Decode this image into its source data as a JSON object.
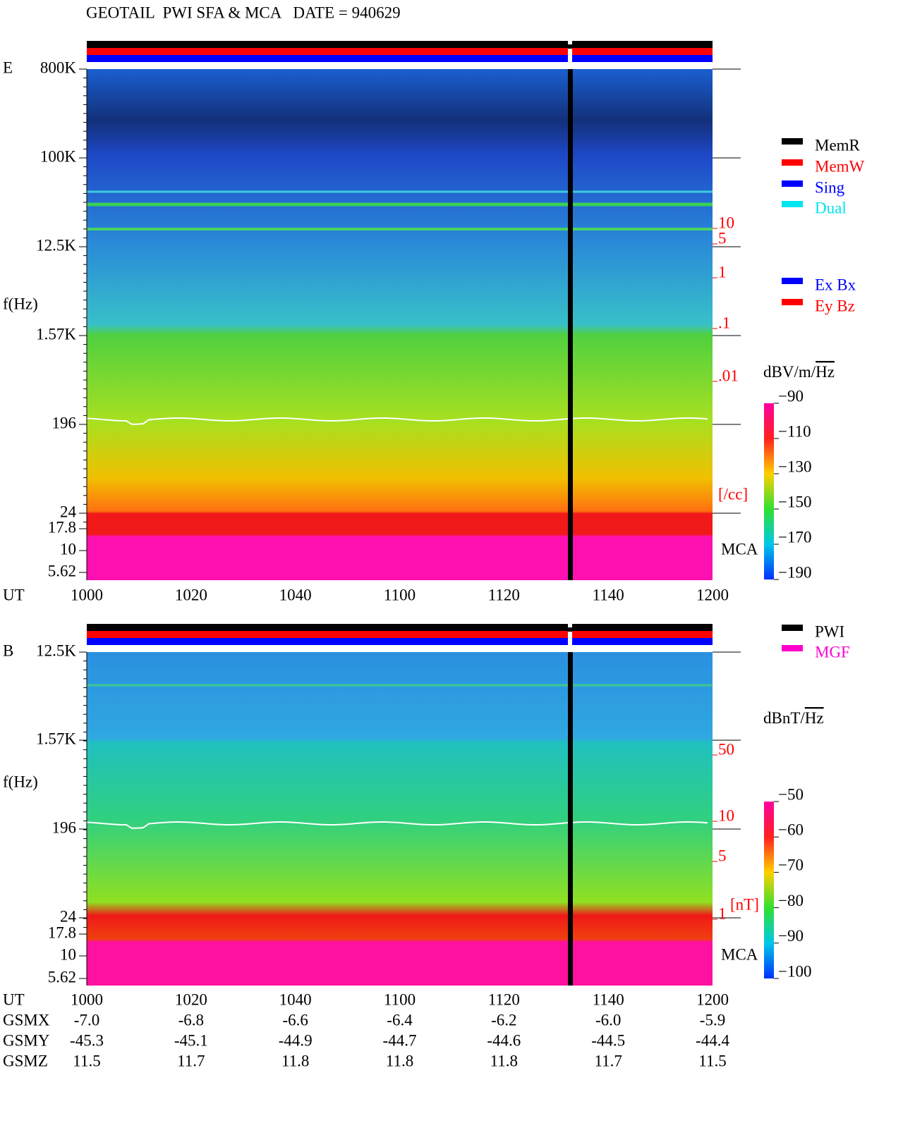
{
  "header": {
    "title": "GEOTAIL  PWI SFA & MCA   DATE = 940629"
  },
  "panels": [
    {
      "label": "E",
      "freq_axis_label": "f(Hz)",
      "freq_ticks": [
        "800K",
        "100K",
        "12.5K",
        "1.57K",
        "196",
        "24",
        "17.8",
        "10",
        "5.62"
      ],
      "time_axis_label": "UT",
      "time_ticks": [
        "1000",
        "1020",
        "1040",
        "1100",
        "1120",
        "1140",
        "1200"
      ],
      "scale_labels": [
        "10",
        "5",
        "1",
        ".1",
        ".01"
      ],
      "scale_unit": "[/cc]",
      "mca_label": "MCA",
      "legend": [
        {
          "text": "MemR",
          "color": "#000000"
        },
        {
          "text": "MemW",
          "color": "#ff0000"
        },
        {
          "text": "Sing",
          "color": "#0000ff"
        },
        {
          "text": "Dual",
          "color": "#00e5ee"
        }
      ],
      "legend2": [
        {
          "text": "Ex Bx",
          "color": "#0000ff"
        },
        {
          "text": "Ey Bz",
          "color": "#ff0000"
        }
      ],
      "colorbar_unit": {
        "prefix": "dBV/m/",
        "root": "Hz"
      },
      "colorbar_ticks": [
        "−90",
        "−110",
        "−130",
        "−150",
        "−170",
        "−190"
      ]
    },
    {
      "label": "B",
      "freq_axis_label": "f(Hz)",
      "freq_ticks": [
        "12.5K",
        "1.57K",
        "196",
        "24",
        "17.8",
        "10",
        "5.62"
      ],
      "time_axis_label": "UT",
      "time_ticks": [
        "1000",
        "1020",
        "1040",
        "1100",
        "1120",
        "1140",
        "1200"
      ],
      "scale_labels": [
        "50",
        "10",
        "5",
        "1"
      ],
      "scale_unit": "[nT]",
      "mca_label": "MCA",
      "legend": [
        {
          "text": "PWI",
          "color": "#000000"
        },
        {
          "text": "MGF",
          "color": "#ff00cc"
        }
      ],
      "legend2": [],
      "colorbar_unit": {
        "prefix": "dBnT/",
        "root": "Hz"
      },
      "colorbar_ticks": [
        "−50",
        "−60",
        "−70",
        "−80",
        "−90",
        "−100"
      ]
    }
  ],
  "orbit": {
    "rows": [
      {
        "label": "GSMX",
        "values": [
          "-7.0",
          "-6.8",
          "-6.6",
          "-6.4",
          "-6.2",
          "-6.0",
          "-5.9"
        ]
      },
      {
        "label": "GSMY",
        "values": [
          "-45.3",
          "-45.1",
          "-44.9",
          "-44.7",
          "-44.6",
          "-44.5",
          "-44.4"
        ]
      },
      {
        "label": "GSMZ",
        "values": [
          "11.5",
          "11.7",
          "11.8",
          "11.8",
          "11.8",
          "11.7",
          "11.5"
        ]
      }
    ]
  }
}
